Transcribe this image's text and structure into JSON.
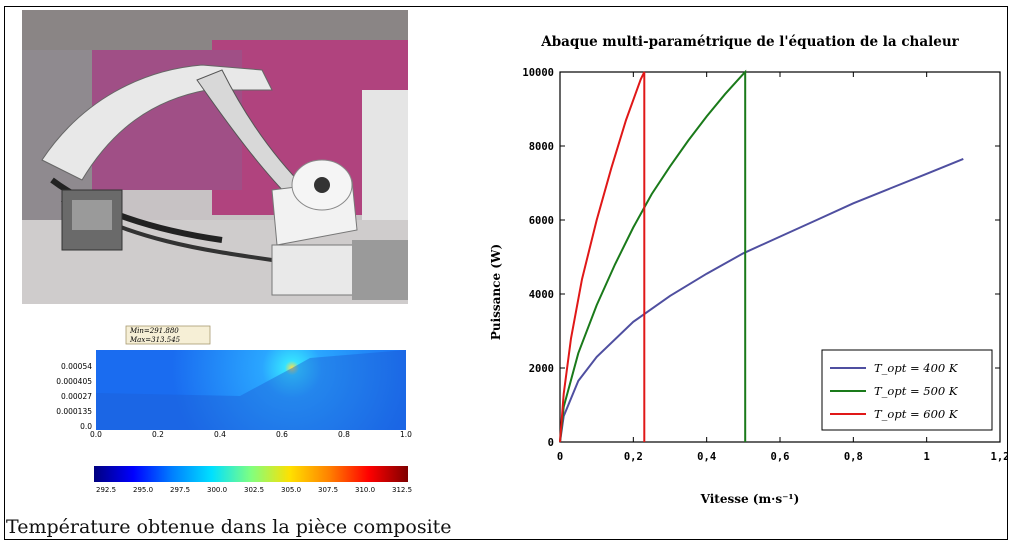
{
  "caption": "Température obtenue dans la pièce composite",
  "sim_panel": {
    "minmax_line1": "Min=291.880",
    "minmax_line2": "Max=313.545",
    "y_ticks": [
      "0.00054",
      "0.000405",
      "0.00027",
      "0.000135",
      "0.0"
    ],
    "x_ticks": [
      "0.0",
      "0.2",
      "0.4",
      "0.6",
      "0.8",
      "1.0"
    ],
    "colorbar_ticks": [
      "292.5",
      "295.0",
      "297.5",
      "300.0",
      "302.5",
      "305.0",
      "307.5",
      "310.0",
      "312.5"
    ]
  },
  "chart_data": {
    "type": "line",
    "title": "Abaque multi-paramétrique de l'équation de la chaleur",
    "xlabel": "Vitesse (m·s⁻¹)",
    "ylabel": "Puissance (W)",
    "xlim": [
      0,
      1.2
    ],
    "ylim": [
      0,
      10000
    ],
    "x_ticks": [
      "0",
      "0,2",
      "0,4",
      "0,6",
      "0,8",
      "1",
      "1,2"
    ],
    "y_ticks": [
      "0",
      "2000",
      "4000",
      "6000",
      "8000",
      "10000"
    ],
    "grid": false,
    "legend": "bottom-right",
    "colors": [
      "#4f4fa0",
      "#1a7a1a",
      "#e01818"
    ],
    "series": [
      {
        "name": "T_opt = 400 K",
        "x": [
          0,
          0.01,
          0.05,
          0.1,
          0.2,
          0.3,
          0.4,
          0.5,
          0.6,
          0.7,
          0.8,
          0.9,
          1.0,
          1.1
        ],
        "y": [
          0,
          700,
          1650,
          2300,
          3250,
          3950,
          4550,
          5100,
          5550,
          6000,
          6450,
          6850,
          7250,
          7650
        ]
      },
      {
        "name": "T_opt = 500 K",
        "x": [
          0,
          0.01,
          0.05,
          0.1,
          0.15,
          0.2,
          0.25,
          0.3,
          0.35,
          0.4,
          0.45,
          0.5,
          0.505,
          0.505
        ],
        "y": [
          0,
          950,
          2400,
          3700,
          4800,
          5800,
          6700,
          7450,
          8150,
          8800,
          9400,
          9950,
          10000,
          0
        ]
      },
      {
        "name": "T_opt = 600 K",
        "x": [
          0,
          0.01,
          0.03,
          0.06,
          0.1,
          0.14,
          0.18,
          0.22,
          0.23,
          0.23
        ],
        "y": [
          0,
          1300,
          2800,
          4400,
          6000,
          7400,
          8700,
          9800,
          10000,
          0
        ]
      }
    ]
  }
}
